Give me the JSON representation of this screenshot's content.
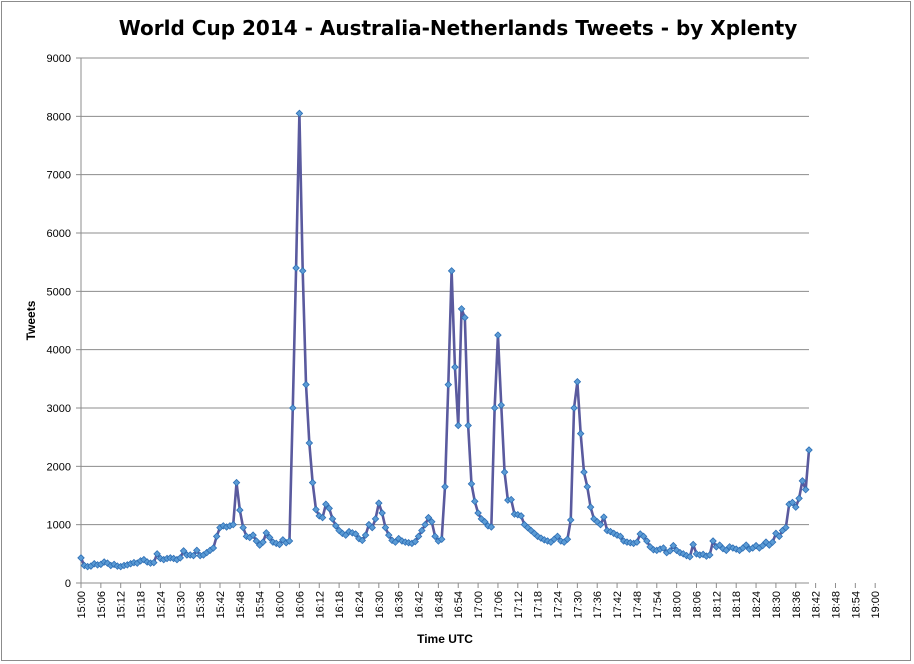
{
  "chart_data": {
    "type": "line",
    "title": "World Cup 2014 - Australia-Netherlands Tweets - by Xplenty",
    "xlabel": "Time UTC",
    "ylabel": "Tweets",
    "ylim": [
      0,
      9000
    ],
    "y_ticks": [
      0,
      1000,
      2000,
      3000,
      4000,
      5000,
      6000,
      7000,
      8000,
      9000
    ],
    "x_tick_labels": [
      "15:00",
      "15:06",
      "15:12",
      "15:18",
      "15:24",
      "15:30",
      "15:36",
      "15:42",
      "15:48",
      "15:54",
      "16:00",
      "16:06",
      "16:12",
      "16:18",
      "16:24",
      "16:30",
      "16:36",
      "16:42",
      "16:48",
      "16:54",
      "17:00",
      "17:06",
      "17:12",
      "17:18",
      "17:24",
      "17:30",
      "17:36",
      "17:42",
      "17:48",
      "17:54",
      "18:00",
      "18:06",
      "18:12",
      "18:18",
      "18:24",
      "18:30",
      "18:36",
      "18:42",
      "18:48",
      "18:54",
      "19:00"
    ],
    "x_start": "15:00",
    "x_step_minutes": 1,
    "grid": true,
    "colors": {
      "line": "#5a5a9e",
      "marker_fill": "#5b9bd5",
      "marker_stroke": "#2e6fb5",
      "grid": "#8c8c8c",
      "axis": "#8c8c8c"
    },
    "series": [
      {
        "values": [
          430,
          300,
          280,
          290,
          330,
          310,
          320,
          360,
          340,
          300,
          320,
          290,
          280,
          300,
          310,
          330,
          350,
          340,
          380,
          400,
          360,
          340,
          350,
          500,
          420,
          400,
          420,
          430,
          420,
          400,
          430,
          550,
          480,
          480,
          470,
          560,
          470,
          480,
          520,
          560,
          600,
          800,
          950,
          980,
          960,
          980,
          1000,
          1720,
          1250,
          950,
          800,
          780,
          820,
          720,
          650,
          700,
          860,
          780,
          700,
          680,
          660,
          740,
          690,
          720,
          3000,
          5400,
          8050,
          5350,
          3400,
          2400,
          1720,
          1260,
          1150,
          1120,
          1350,
          1280,
          1100,
          980,
          900,
          850,
          820,
          880,
          860,
          840,
          760,
          730,
          820,
          1000,
          950,
          1100,
          1370,
          1200,
          950,
          820,
          730,
          700,
          760,
          720,
          700,
          690,
          680,
          710,
          800,
          900,
          1000,
          1120,
          1050,
          800,
          720,
          750,
          1650,
          3400,
          5350,
          3700,
          2700,
          4700,
          4550,
          2700,
          1700,
          1400,
          1200,
          1100,
          1050,
          980,
          960,
          3000,
          4250,
          3050,
          1900,
          1420,
          1430,
          1180,
          1170,
          1150,
          1000,
          950,
          900,
          850,
          800,
          770,
          740,
          720,
          700,
          750,
          800,
          720,
          700,
          750,
          1080,
          3000,
          3450,
          2560,
          1900,
          1650,
          1300,
          1100,
          1050,
          1000,
          1130,
          900,
          880,
          850,
          820,
          800,
          720,
          700,
          690,
          680,
          700,
          840,
          800,
          720,
          620,
          570,
          560,
          580,
          600,
          520,
          550,
          640,
          560,
          520,
          500,
          470,
          450,
          660,
          500,
          480,
          490,
          460,
          480,
          720,
          620,
          650,
          590,
          560,
          620,
          600,
          580,
          560,
          600,
          650,
          580,
          600,
          640,
          600,
          640,
          700,
          650,
          700,
          850,
          800,
          900,
          950,
          1350,
          1380,
          1300,
          1450,
          1750,
          1600,
          2280
        ]
      }
    ]
  }
}
